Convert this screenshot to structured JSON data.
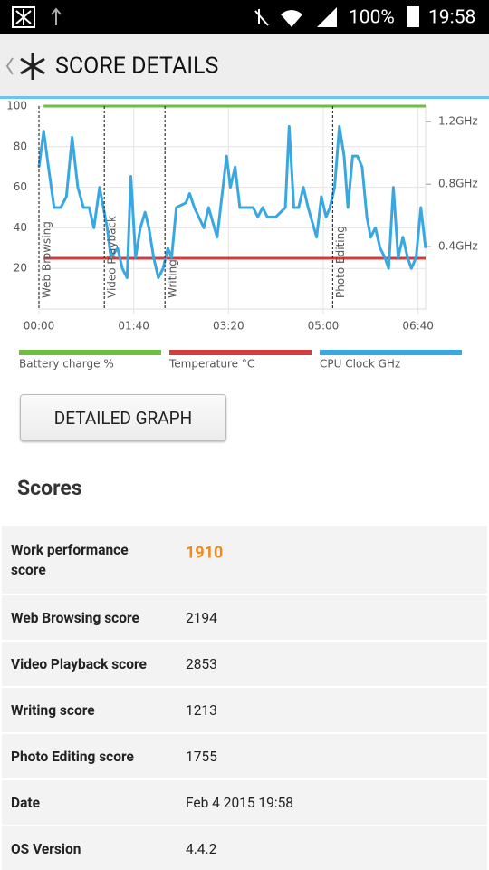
{
  "status_bar": {
    "battery": "100%",
    "time": "19:58"
  },
  "app_bar": {
    "title": "SCORE DETAILS"
  },
  "chart_data": {
    "type": "line",
    "xlim": [
      0,
      408
    ],
    "xticks": [
      {
        "value": 0,
        "label": "00:00"
      },
      {
        "value": 100,
        "label": "01:40"
      },
      {
        "value": 200,
        "label": "03:20"
      },
      {
        "value": 300,
        "label": "05:00"
      },
      {
        "value": 400,
        "label": "06:40"
      }
    ],
    "ylim": [
      0,
      100
    ],
    "yticks": [
      20,
      40,
      60,
      80,
      100
    ],
    "y2lim": [
      0,
      1.3
    ],
    "y2ticks": [
      {
        "value": 0.4,
        "label": "0.4GHz"
      },
      {
        "value": 0.8,
        "label": "0.8GHz"
      },
      {
        "value": 1.2,
        "label": "1.2GHz"
      }
    ],
    "grid": true,
    "sections": [
      {
        "name": "Web Browsing",
        "x": 0
      },
      {
        "name": "Video Playback",
        "x": 69
      },
      {
        "name": "Writing",
        "x": 133
      },
      {
        "name": "Photo Editing",
        "x": 310
      }
    ],
    "series": [
      {
        "name": "Battery charge %",
        "color": "#6dbf3f",
        "x": [
          5,
          408
        ],
        "values": [
          100,
          100
        ]
      },
      {
        "name": "Temperature °C",
        "color": "#d23c3c",
        "x": [
          5,
          408
        ],
        "values": [
          25,
          25
        ]
      },
      {
        "name": "CPU Clock GHz",
        "color": "#3aa8e0",
        "axis": "y2",
        "x": [
          0,
          5,
          10,
          16,
          23,
          29,
          35,
          41,
          47,
          53,
          58,
          64,
          72,
          76,
          83,
          88,
          93,
          97,
          102,
          107,
          112,
          116,
          121,
          126,
          131,
          136,
          140,
          145,
          155,
          159,
          164,
          174,
          179,
          188,
          193,
          198,
          202,
          207,
          212,
          226,
          231,
          236,
          241,
          250,
          260,
          264,
          269,
          274,
          279,
          284,
          293,
          298,
          303,
          307,
          312,
          317,
          322,
          326,
          331,
          336,
          341,
          346,
          350,
          355,
          360,
          365,
          369,
          374,
          379,
          384,
          389,
          393,
          398,
          403,
          408
        ],
        "values": [
          0.91,
          1.14,
          0.91,
          0.65,
          0.65,
          0.72,
          1.1,
          0.78,
          0.65,
          0.65,
          0.52,
          0.78,
          0.52,
          0.33,
          0.39,
          0.26,
          0.2,
          0.85,
          0.33,
          0.52,
          0.62,
          0.52,
          0.33,
          0.2,
          0.26,
          0.39,
          0.33,
          0.65,
          0.68,
          0.74,
          0.65,
          0.52,
          0.65,
          0.46,
          0.72,
          0.98,
          0.78,
          0.91,
          0.65,
          0.65,
          0.59,
          0.65,
          0.59,
          0.59,
          0.65,
          1.17,
          0.65,
          0.65,
          0.78,
          0.65,
          0.46,
          0.72,
          0.59,
          0.65,
          0.78,
          1.17,
          0.98,
          0.65,
          0.98,
          0.98,
          0.91,
          0.59,
          0.46,
          0.52,
          0.39,
          0.33,
          0.26,
          0.78,
          0.33,
          0.46,
          0.33,
          0.26,
          0.33,
          0.65,
          0.39
        ]
      }
    ]
  },
  "button": "DETAILED GRAPH",
  "scores_heading": "Scores",
  "scores": [
    {
      "label": "Work performance score",
      "value": "1910"
    },
    {
      "label": "Web Browsing score",
      "value": "2194"
    },
    {
      "label": "Video Playback score",
      "value": "2853"
    },
    {
      "label": "Writing score",
      "value": "1213"
    },
    {
      "label": "Photo Editing score",
      "value": "1755"
    },
    {
      "label": "Date",
      "value": "Feb 4 2015 19:58"
    },
    {
      "label": "OS Version",
      "value": "4.4.2"
    }
  ]
}
